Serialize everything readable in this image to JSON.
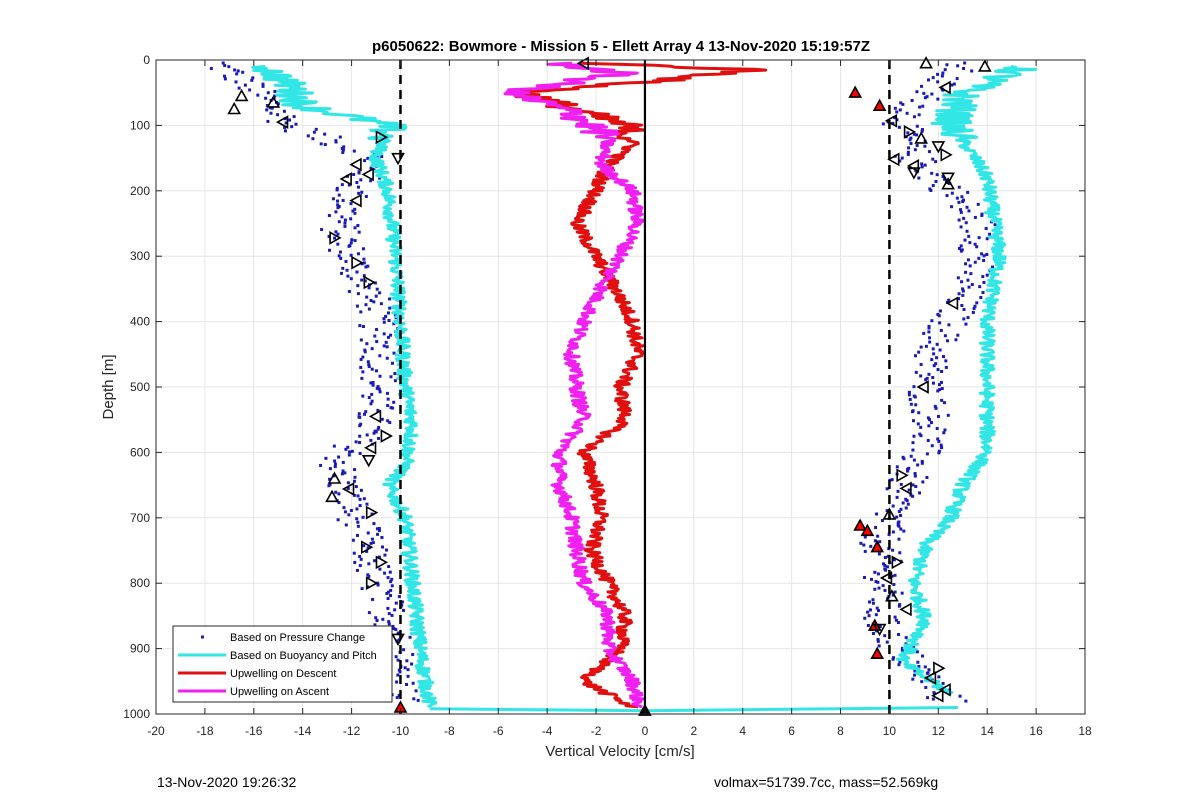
{
  "chart_data": {
    "type": "scatter",
    "title": "p6050622: Bowmore - Mission 5 - Ellett Array 4 13-Nov-2020 15:19:57Z",
    "xlabel": "Vertical Velocity [cm/s]",
    "ylabel": "Depth [m]",
    "xlim": [
      -20,
      18
    ],
    "ylim": [
      0,
      1000
    ],
    "y_reversed": true,
    "grid": true,
    "x_ticks": [
      -20,
      -18,
      -16,
      -14,
      -12,
      -10,
      -8,
      -6,
      -4,
      -2,
      0,
      2,
      4,
      6,
      8,
      10,
      12,
      14,
      16,
      18
    ],
    "y_ticks": [
      0,
      100,
      200,
      300,
      400,
      500,
      600,
      700,
      800,
      900,
      1000
    ],
    "legend_position": "bottom-left",
    "reference_lines": [
      {
        "x": -10,
        "style": "dashed",
        "color": "#000000"
      },
      {
        "x": 0,
        "style": "solid",
        "color": "#000000"
      },
      {
        "x": 10,
        "style": "dashed",
        "color": "#000000"
      }
    ],
    "series": [
      {
        "name": "Based on Pressure Change",
        "kind": "points",
        "color": "#1a1ab8",
        "profiles": [
          {
            "depth": [
              5,
              30,
              60,
              100,
              150,
              200,
              260,
              320,
              380,
              440,
              500,
              560,
              620,
              680,
              740,
              800,
              860,
              920,
              980
            ],
            "x": [
              -17.5,
              -16.5,
              -15.5,
              -14.5,
              -11.0,
              -12.0,
              -12.5,
              -11.8,
              -11.0,
              -10.8,
              -10.9,
              -11.2,
              -12.6,
              -12.0,
              -11.4,
              -11.0,
              -10.3,
              -10.1,
              -10.0
            ]
          },
          {
            "depth": [
              5,
              50,
              100,
              150,
              200,
              260,
              320,
              380,
              440,
              500,
              560,
              620,
              680,
              740,
              800,
              860,
              920,
              980
            ],
            "x": [
              13.0,
              11.5,
              10.5,
              11.0,
              12.5,
              13.8,
              13.5,
              12.8,
              11.8,
              11.5,
              11.8,
              11.0,
              10.2,
              9.6,
              9.8,
              9.6,
              10.8,
              12.4
            ]
          }
        ]
      },
      {
        "name": "Based on Buoyancy and Pitch",
        "kind": "line",
        "color": "#33e6e6",
        "profiles": [
          {
            "depth": [
              10,
              40,
              70,
              100,
              150,
              200,
              300,
              400,
              500,
              560,
              620,
              650,
              700,
              800,
              900,
              990
            ],
            "x": [
              -15.5,
              -14.5,
              -14.0,
              -10.5,
              -11.0,
              -10.5,
              -10.2,
              -10.0,
              -9.8,
              -9.5,
              -9.8,
              -10.5,
              -9.8,
              -9.5,
              -9.2,
              -8.8
            ]
          },
          {
            "depth": [
              10,
              50,
              100,
              150,
              180,
              300,
              400,
              500,
              600,
              650,
              700,
              740,
              800,
              860,
              920,
              970
            ],
            "x": [
              15.5,
              13.0,
              12.5,
              13.5,
              14.0,
              14.5,
              14.0,
              14.0,
              14.0,
              13.0,
              12.5,
              11.5,
              11.0,
              11.5,
              10.5,
              12.5
            ]
          },
          {
            "depth": [
              992,
              995,
              990
            ],
            "x": [
              -8.8,
              0,
              12.8
            ]
          }
        ]
      },
      {
        "name": "Upwelling on Descent",
        "kind": "line",
        "color": "#e01010",
        "profiles": [
          {
            "depth": [
              5,
              15,
              30,
              50,
              80,
              100,
              130,
              160,
              200,
              250,
              300,
              350,
              400,
              450,
              500,
              550,
              600,
              650,
              700,
              750,
              800,
              850,
              900,
              950,
              990
            ],
            "x": [
              -2.0,
              4.5,
              1.0,
              -5.0,
              -2.5,
              -0.8,
              -0.5,
              -1.5,
              -2.0,
              -2.8,
              -2.0,
              -1.2,
              -0.5,
              -0.3,
              -1.0,
              -0.8,
              -2.5,
              -2.0,
              -1.8,
              -2.2,
              -1.5,
              -0.8,
              -1.0,
              -2.5,
              -0.5
            ]
          }
        ]
      },
      {
        "name": "Upwelling on Ascent",
        "kind": "line",
        "color": "#f020f0",
        "profiles": [
          {
            "depth": [
              5,
              20,
              50,
              80,
              120,
              160,
              200,
              250,
              300,
              350,
              400,
              450,
              500,
              550,
              600,
              650,
              700,
              750,
              800,
              850,
              900,
              950,
              990
            ],
            "x": [
              -3.5,
              -1.0,
              -5.5,
              -3.0,
              -1.5,
              -1.8,
              -0.5,
              -0.3,
              -1.0,
              -1.8,
              -2.5,
              -3.0,
              -2.8,
              -2.5,
              -3.5,
              -3.5,
              -3.0,
              -2.8,
              -2.5,
              -1.5,
              -1.5,
              -0.5,
              -0.2
            ]
          }
        ]
      }
    ],
    "markers": [
      {
        "x": -16.5,
        "y": 55,
        "shape": "triangle-up",
        "fill": "none"
      },
      {
        "x": -16.8,
        "y": 75,
        "shape": "triangle-up",
        "fill": "none"
      },
      {
        "x": -15.2,
        "y": 65,
        "shape": "triangle-up",
        "fill": "none"
      },
      {
        "x": -14.8,
        "y": 95,
        "shape": "triangle-left",
        "fill": "none"
      },
      {
        "x": -10.8,
        "y": 118,
        "shape": "triangle-right",
        "fill": "none"
      },
      {
        "x": -10.1,
        "y": 150,
        "shape": "triangle-down",
        "fill": "none"
      },
      {
        "x": -11.8,
        "y": 160,
        "shape": "triangle-left",
        "fill": "none"
      },
      {
        "x": -12.2,
        "y": 182,
        "shape": "triangle-left",
        "fill": "none"
      },
      {
        "x": -11.3,
        "y": 175,
        "shape": "triangle-left",
        "fill": "none"
      },
      {
        "x": -11.8,
        "y": 215,
        "shape": "triangle-left",
        "fill": "none"
      },
      {
        "x": -12.7,
        "y": 272,
        "shape": "triangle-right",
        "fill": "none"
      },
      {
        "x": -11.8,
        "y": 310,
        "shape": "triangle-right",
        "fill": "none"
      },
      {
        "x": -11.3,
        "y": 340,
        "shape": "triangle-right",
        "fill": "none"
      },
      {
        "x": -11.0,
        "y": 545,
        "shape": "triangle-left",
        "fill": "none"
      },
      {
        "x": -10.6,
        "y": 575,
        "shape": "triangle-right",
        "fill": "none"
      },
      {
        "x": -11.2,
        "y": 593,
        "shape": "triangle-left",
        "fill": "none"
      },
      {
        "x": -11.3,
        "y": 612,
        "shape": "triangle-down",
        "fill": "none"
      },
      {
        "x": -12.7,
        "y": 640,
        "shape": "triangle-up",
        "fill": "none"
      },
      {
        "x": -12.1,
        "y": 656,
        "shape": "triangle-left",
        "fill": "none"
      },
      {
        "x": -12.8,
        "y": 668,
        "shape": "triangle-up",
        "fill": "none"
      },
      {
        "x": -11.2,
        "y": 692,
        "shape": "triangle-right",
        "fill": "none"
      },
      {
        "x": -11.4,
        "y": 745,
        "shape": "triangle-right",
        "fill": "none"
      },
      {
        "x": -10.8,
        "y": 768,
        "shape": "triangle-right",
        "fill": "none"
      },
      {
        "x": -11.2,
        "y": 800,
        "shape": "triangle-right",
        "fill": "none"
      },
      {
        "x": -10.1,
        "y": 885,
        "shape": "triangle-down",
        "fill": "none"
      },
      {
        "x": -10.0,
        "y": 990,
        "shape": "triangle-up",
        "fill": "red"
      },
      {
        "x": -2.5,
        "y": 5,
        "shape": "triangle-left",
        "fill": "none"
      },
      {
        "x": 0.0,
        "y": 995,
        "shape": "triangle-up",
        "fill": "black"
      },
      {
        "x": 11.5,
        "y": 5,
        "shape": "triangle-up",
        "fill": "none"
      },
      {
        "x": 13.9,
        "y": 10,
        "shape": "triangle-up",
        "fill": "none"
      },
      {
        "x": 12.3,
        "y": 42,
        "shape": "triangle-left",
        "fill": "none"
      },
      {
        "x": 8.6,
        "y": 50,
        "shape": "triangle-up",
        "fill": "red"
      },
      {
        "x": 9.6,
        "y": 70,
        "shape": "triangle-up",
        "fill": "red"
      },
      {
        "x": 10.1,
        "y": 93,
        "shape": "triangle-left",
        "fill": "none"
      },
      {
        "x": 10.8,
        "y": 110,
        "shape": "triangle-right",
        "fill": "none"
      },
      {
        "x": 11.3,
        "y": 120,
        "shape": "triangle-up",
        "fill": "none"
      },
      {
        "x": 12.0,
        "y": 132,
        "shape": "triangle-down",
        "fill": "none"
      },
      {
        "x": 12.3,
        "y": 145,
        "shape": "triangle-right",
        "fill": "none"
      },
      {
        "x": 10.2,
        "y": 152,
        "shape": "triangle-left",
        "fill": "none"
      },
      {
        "x": 11.0,
        "y": 162,
        "shape": "triangle-left",
        "fill": "none"
      },
      {
        "x": 11.0,
        "y": 172,
        "shape": "triangle-down",
        "fill": "none"
      },
      {
        "x": 12.4,
        "y": 180,
        "shape": "triangle-down",
        "fill": "none"
      },
      {
        "x": 12.4,
        "y": 190,
        "shape": "triangle-up",
        "fill": "none"
      },
      {
        "x": 12.6,
        "y": 372,
        "shape": "triangle-left",
        "fill": "none"
      },
      {
        "x": 11.4,
        "y": 500,
        "shape": "triangle-left",
        "fill": "none"
      },
      {
        "x": 10.5,
        "y": 635,
        "shape": "triangle-right",
        "fill": "none"
      },
      {
        "x": 10.7,
        "y": 655,
        "shape": "triangle-left",
        "fill": "none"
      },
      {
        "x": 10.0,
        "y": 695,
        "shape": "triangle-up",
        "fill": "none"
      },
      {
        "x": 8.8,
        "y": 712,
        "shape": "triangle-up",
        "fill": "red"
      },
      {
        "x": 9.1,
        "y": 720,
        "shape": "triangle-up",
        "fill": "red"
      },
      {
        "x": 9.5,
        "y": 745,
        "shape": "triangle-up",
        "fill": "red"
      },
      {
        "x": 10.3,
        "y": 768,
        "shape": "triangle-right",
        "fill": "none"
      },
      {
        "x": 9.9,
        "y": 792,
        "shape": "triangle-left",
        "fill": "none"
      },
      {
        "x": 10.1,
        "y": 820,
        "shape": "triangle-up",
        "fill": "none"
      },
      {
        "x": 10.7,
        "y": 840,
        "shape": "triangle-left",
        "fill": "none"
      },
      {
        "x": 9.4,
        "y": 865,
        "shape": "triangle-up",
        "fill": "red"
      },
      {
        "x": 9.6,
        "y": 870,
        "shape": "triangle-down",
        "fill": "none"
      },
      {
        "x": 9.5,
        "y": 908,
        "shape": "triangle-up",
        "fill": "red"
      },
      {
        "x": 12.0,
        "y": 930,
        "shape": "triangle-right",
        "fill": "none"
      },
      {
        "x": 11.7,
        "y": 945,
        "shape": "triangle-left",
        "fill": "none"
      },
      {
        "x": 12.3,
        "y": 963,
        "shape": "triangle-left",
        "fill": "none"
      },
      {
        "x": 12.0,
        "y": 972,
        "shape": "triangle-left",
        "fill": "none"
      }
    ]
  },
  "footer": {
    "left": "13-Nov-2020 19:26:32",
    "right": "volmax=51739.7cc, mass=52.569kg"
  }
}
